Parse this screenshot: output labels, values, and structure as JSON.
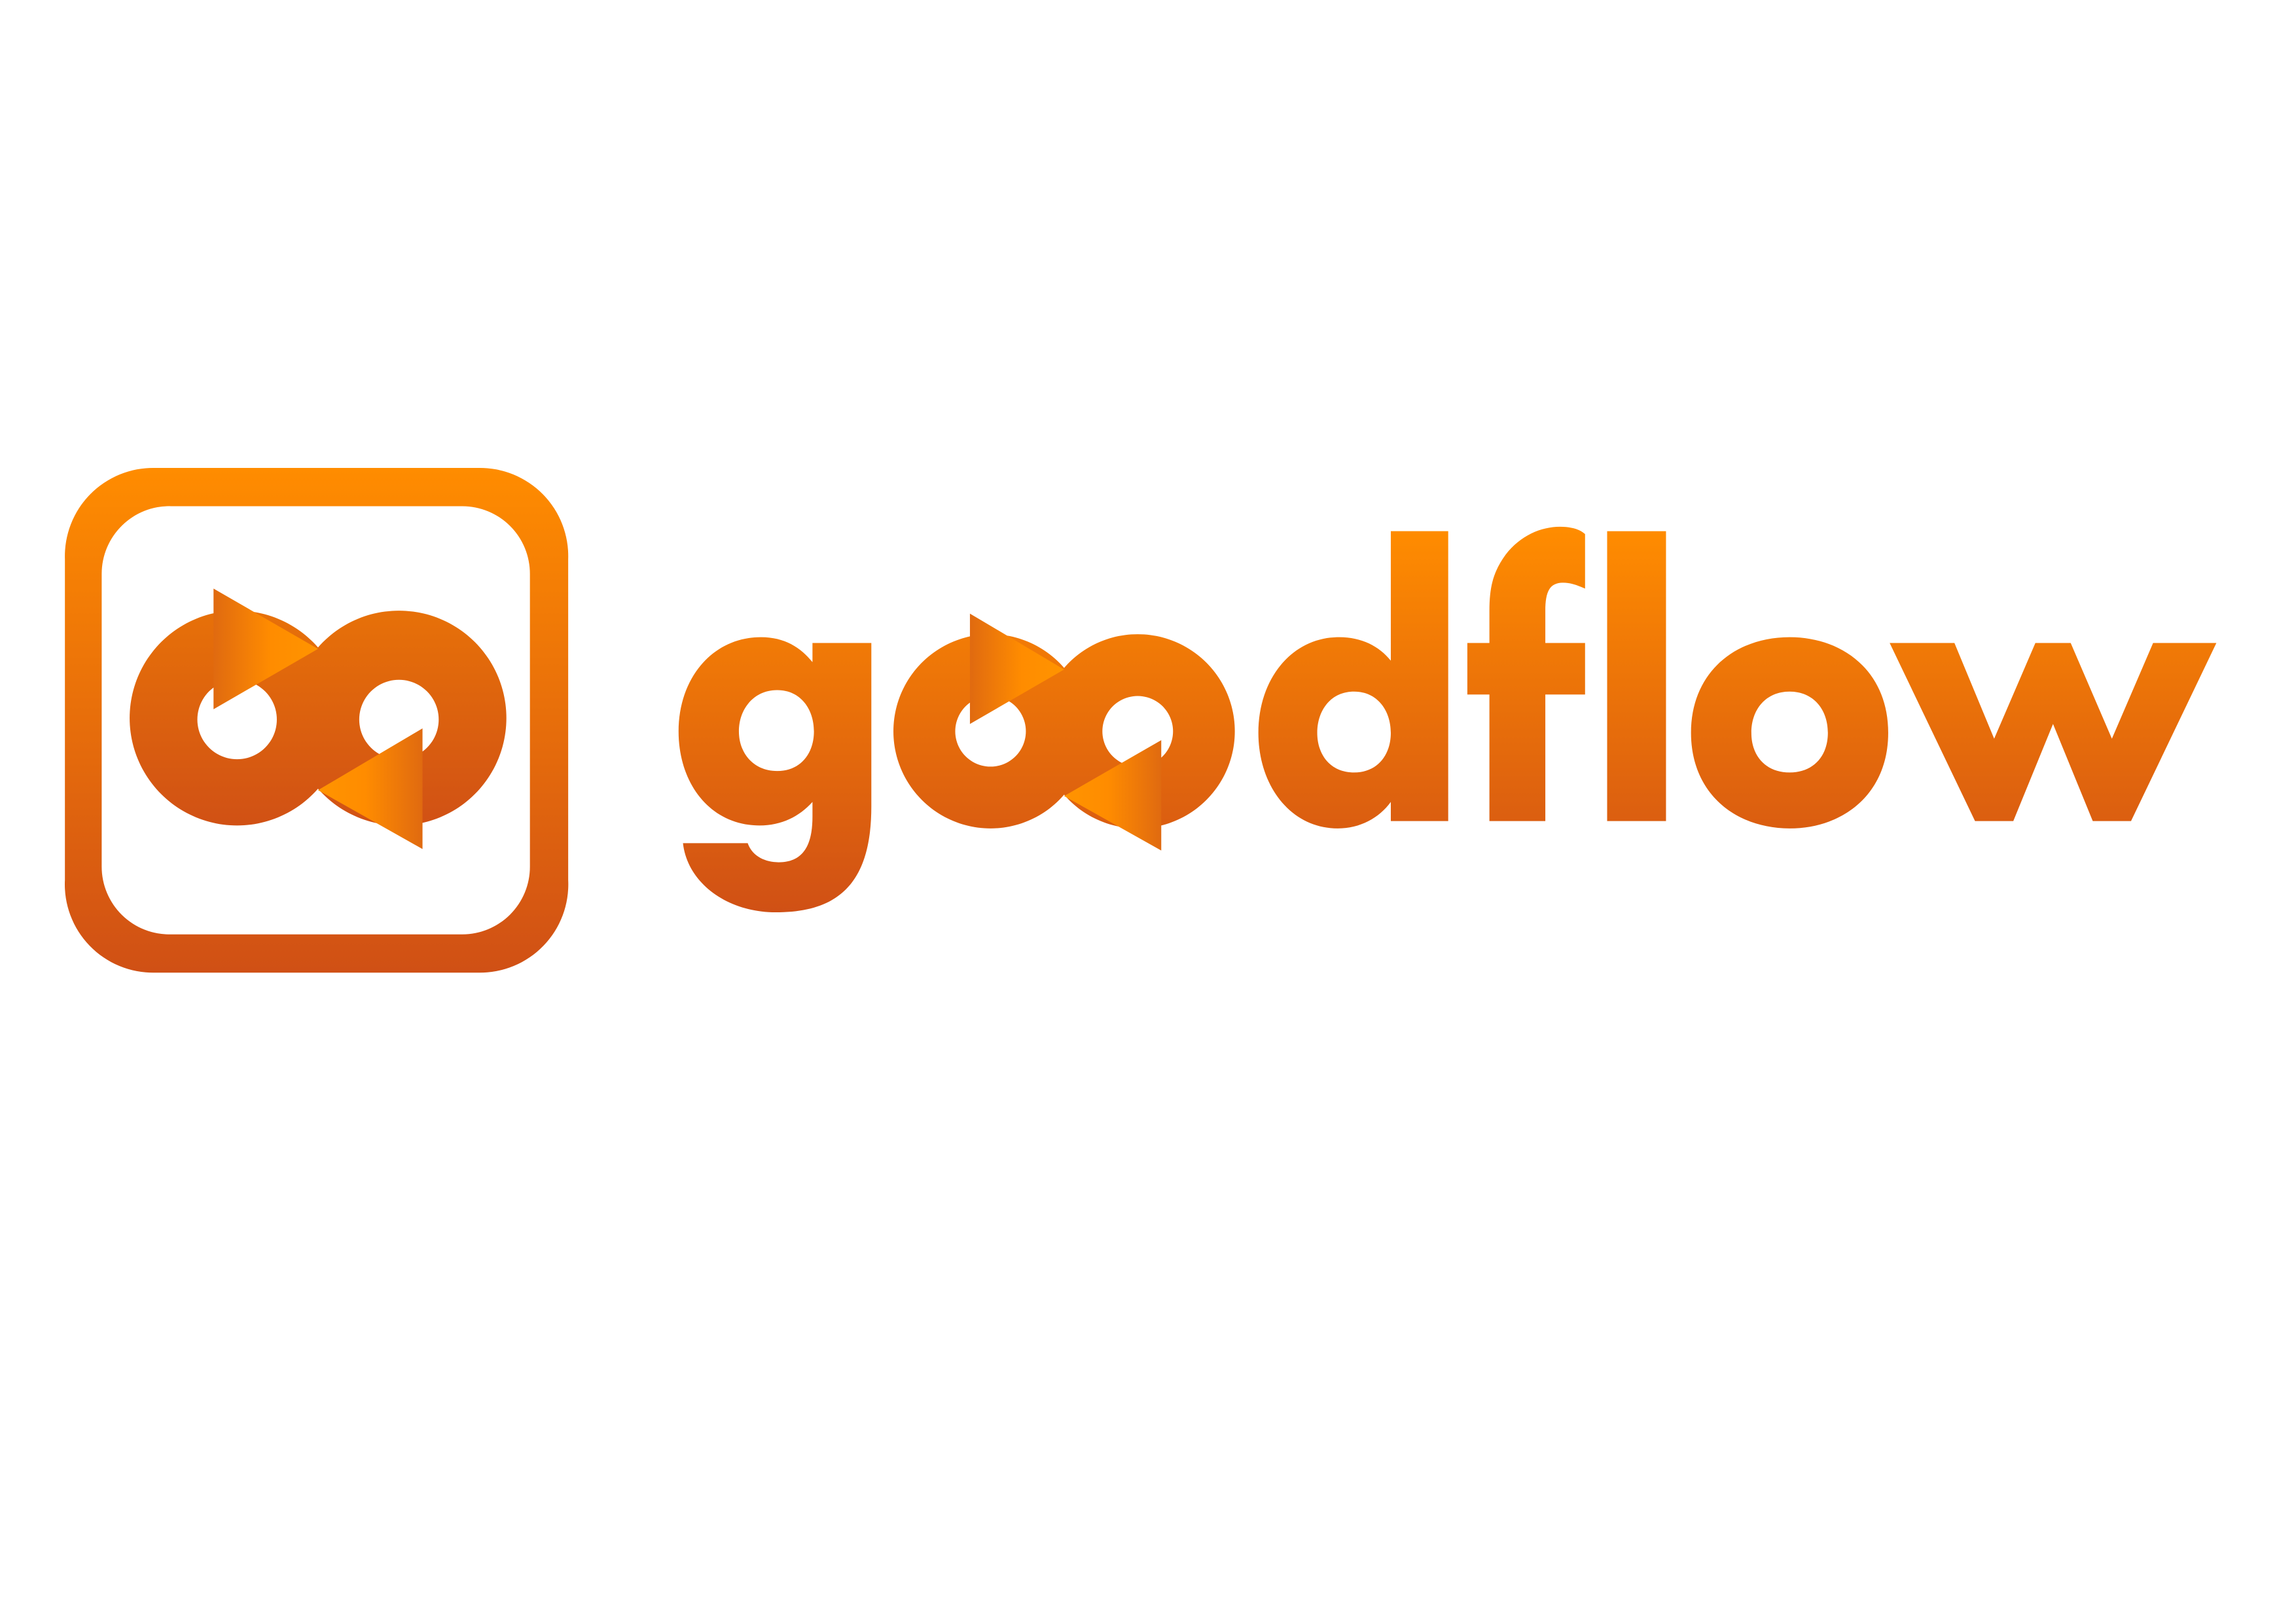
{
  "brand": {
    "name": "goodflow",
    "colors": {
      "gradient_top": "#FF8C00",
      "gradient_bottom": "#D05015",
      "background": "#FFFFFF"
    }
  },
  "icons": {
    "app_icon": "infinity-loop-arrows-icon",
    "wordmark_glyph": "infinity-loop-arrows-icon"
  }
}
